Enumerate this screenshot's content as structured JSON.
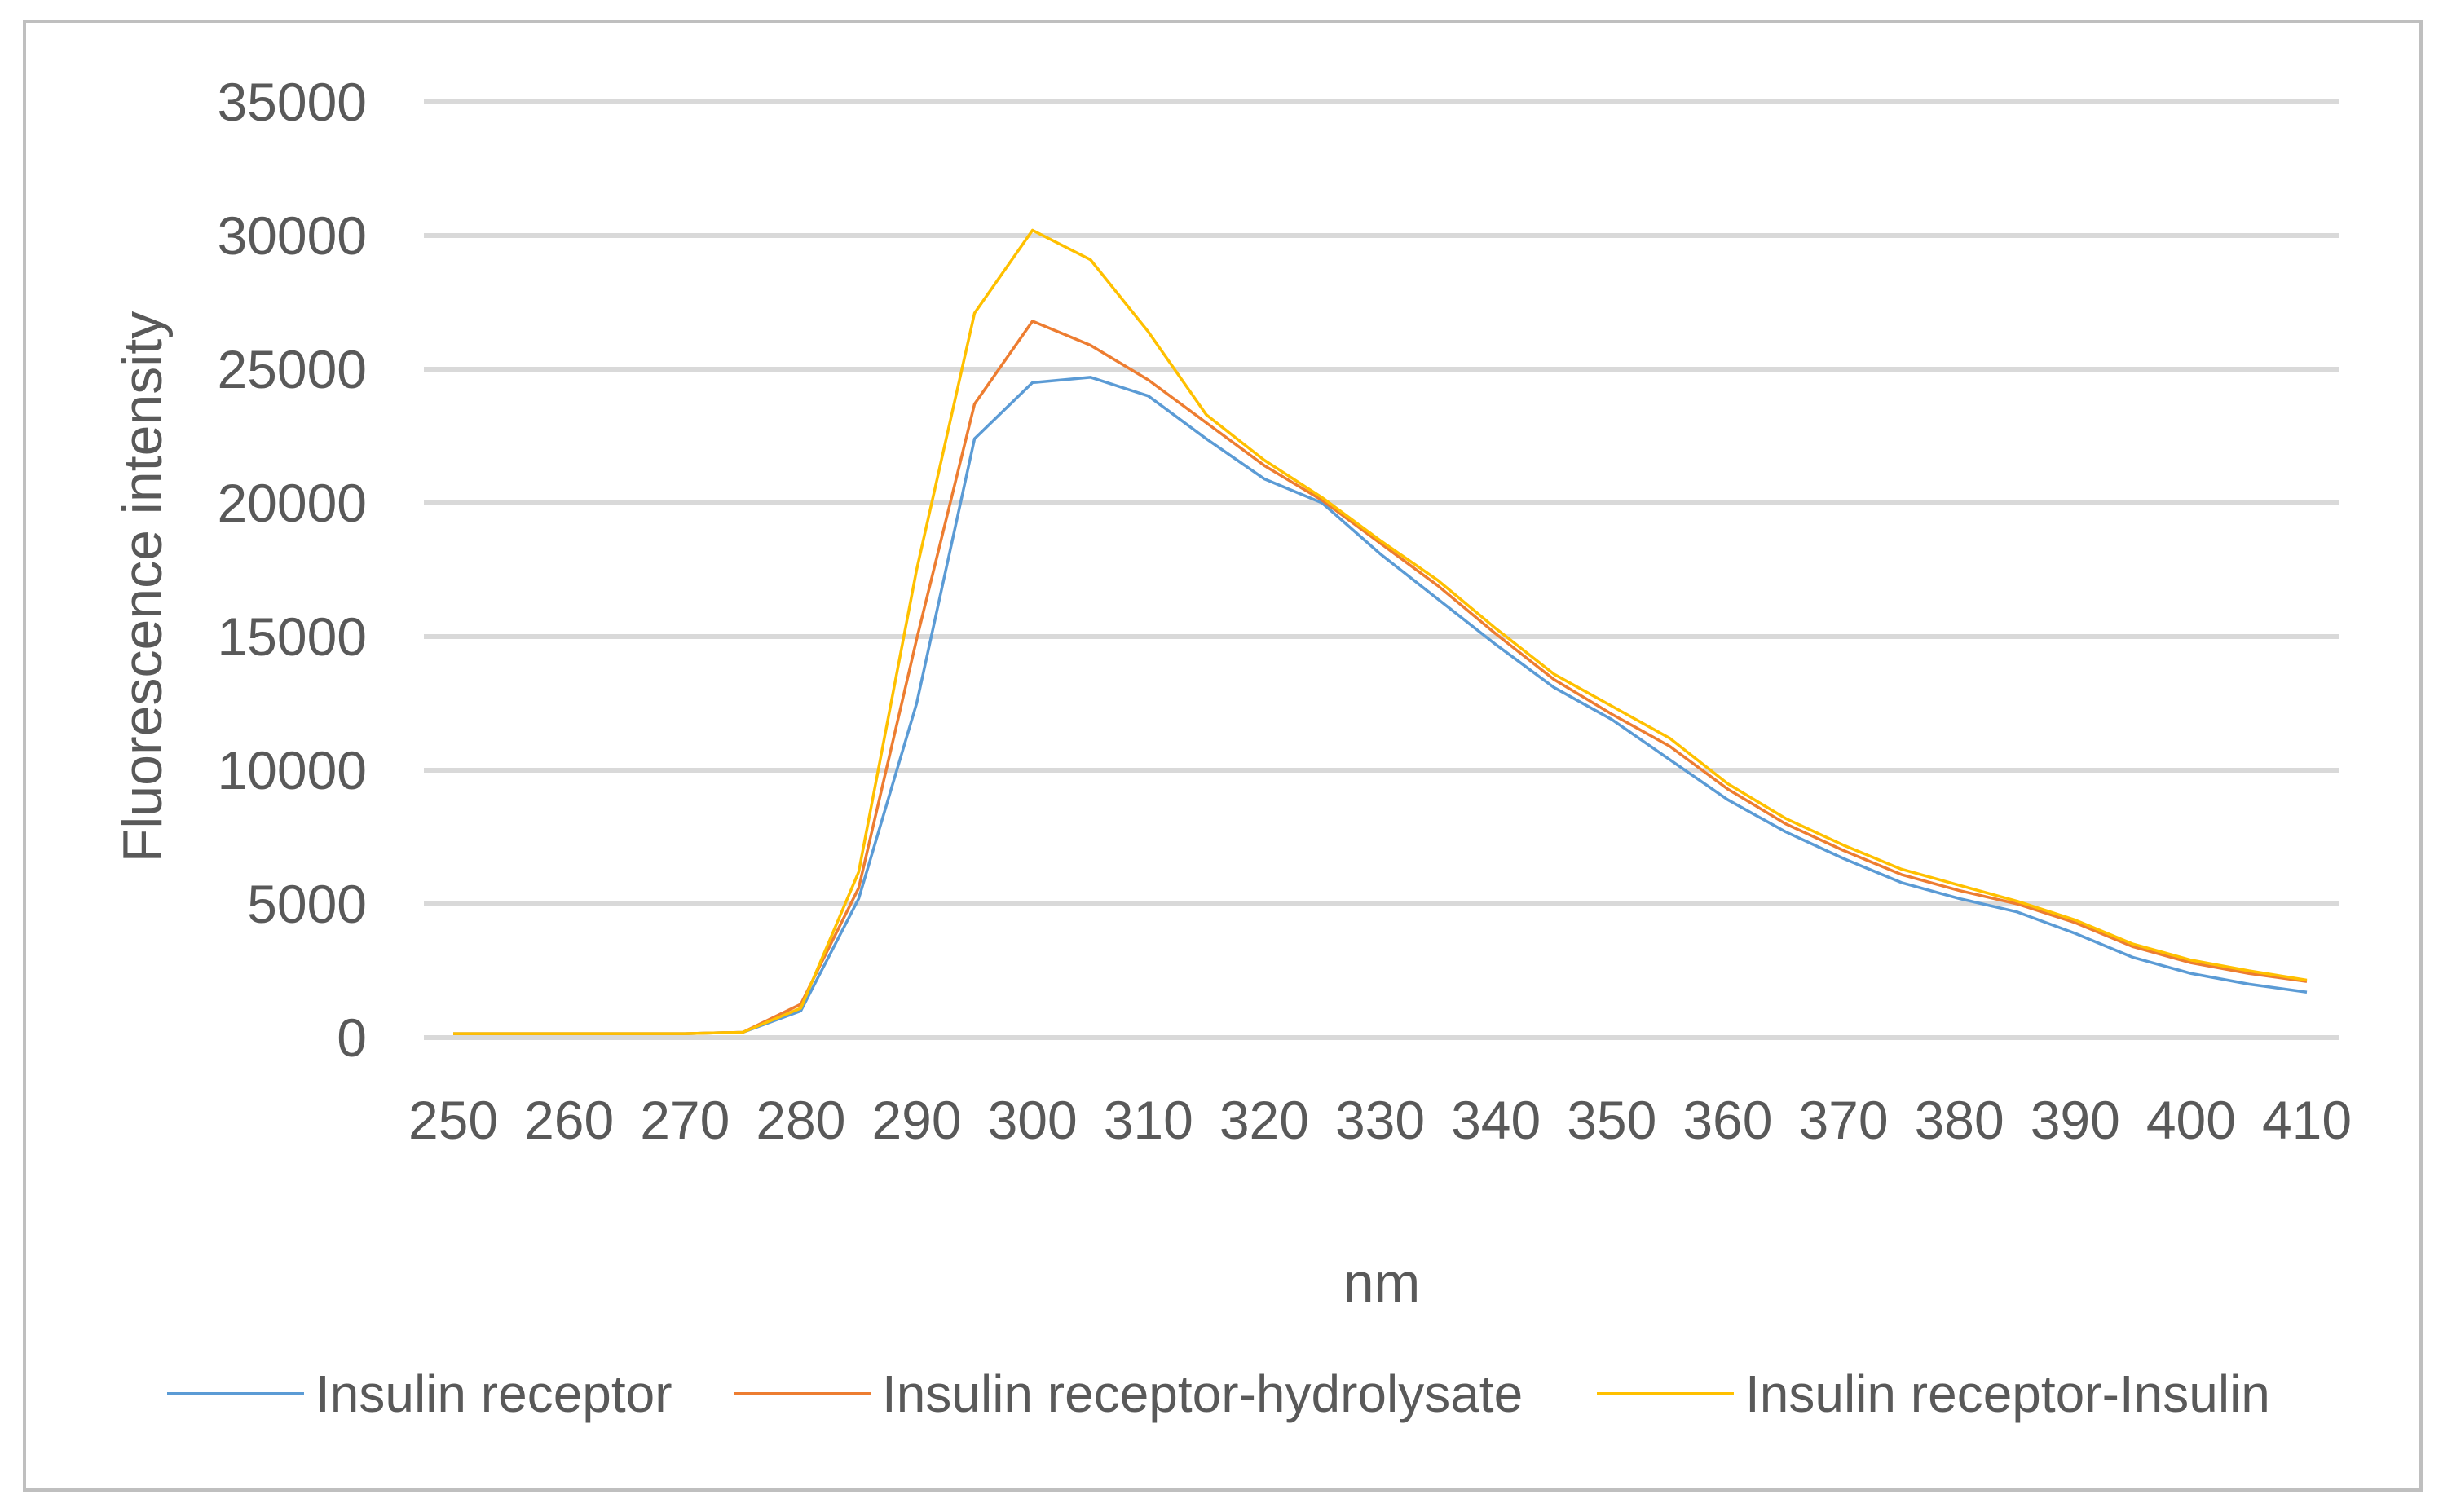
{
  "figure": {
    "background": "#FFFFFF",
    "border_color": "#BFBFBF",
    "text_color": "#595959",
    "gridline_color": "#D9D9D9"
  },
  "chart_data": {
    "type": "line",
    "title": "",
    "xlabel": "nm",
    "ylabel": "Fluorescence intensity",
    "xlim": [
      250,
      410
    ],
    "ylim": [
      0,
      35000
    ],
    "x_tick_step": 10,
    "y_tick_step": 5000,
    "x_ticks": [
      250,
      260,
      270,
      280,
      290,
      300,
      310,
      320,
      330,
      340,
      350,
      360,
      370,
      380,
      390,
      400,
      410
    ],
    "y_ticks": [
      0,
      5000,
      10000,
      15000,
      20000,
      25000,
      30000,
      35000
    ],
    "grid": "horizontal",
    "legend_position": "bottom",
    "x": [
      250,
      255,
      260,
      265,
      270,
      275,
      280,
      285,
      290,
      295,
      300,
      305,
      310,
      315,
      320,
      325,
      330,
      335,
      340,
      345,
      350,
      355,
      360,
      365,
      370,
      375,
      380,
      385,
      390,
      395,
      400,
      405,
      410
    ],
    "series": [
      {
        "name": "Insulin receptor",
        "color": "#5B9BD5",
        "values": [
          150,
          150,
          150,
          150,
          150,
          200,
          1000,
          5200,
          12500,
          22400,
          24500,
          24700,
          24000,
          22400,
          20900,
          20000,
          18100,
          16400,
          14700,
          13100,
          11900,
          10400,
          8900,
          7700,
          6700,
          5800,
          5200,
          4700,
          3900,
          3000,
          2400,
          2000,
          1700
        ]
      },
      {
        "name": "Insulin receptor-hydrolysate",
        "color": "#ED7D31",
        "values": [
          150,
          150,
          150,
          150,
          150,
          200,
          1250,
          5600,
          14900,
          23700,
          26800,
          25900,
          24600,
          23000,
          21400,
          20100,
          18500,
          16900,
          15100,
          13400,
          12100,
          10900,
          9300,
          8000,
          7000,
          6100,
          5500,
          5000,
          4300,
          3400,
          2800,
          2400,
          2100
        ]
      },
      {
        "name": "Insulin receptor-Insulin",
        "color": "#FFC000",
        "values": [
          150,
          150,
          150,
          150,
          150,
          200,
          1100,
          6200,
          17500,
          27100,
          30200,
          29100,
          26400,
          23300,
          21600,
          20200,
          18600,
          17100,
          15300,
          13600,
          12400,
          11200,
          9500,
          8200,
          7200,
          6300,
          5700,
          5100,
          4400,
          3500,
          2900,
          2500,
          2150
        ]
      }
    ]
  }
}
